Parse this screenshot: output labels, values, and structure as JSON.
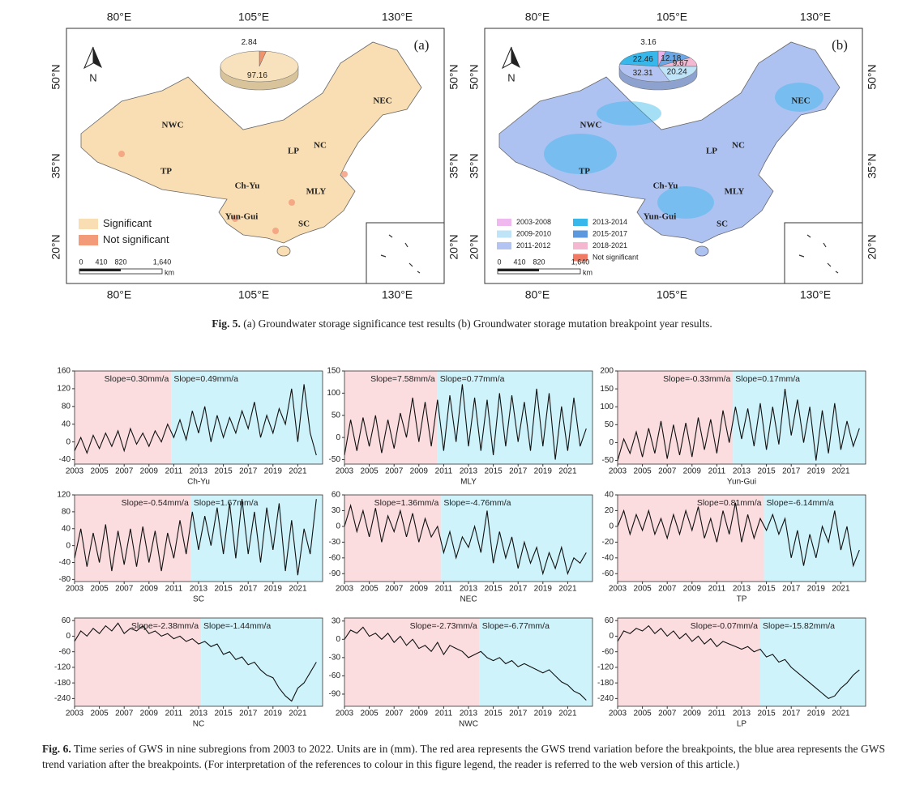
{
  "figure5": {
    "lon_labels": [
      "80°E",
      "105°E",
      "130°E"
    ],
    "lat_labels": [
      "50°N",
      "35°N",
      "20°N"
    ],
    "north": "N",
    "regions": [
      "NEC",
      "NWC",
      "LP",
      "NC",
      "TP",
      "Ch-Yu",
      "MLY",
      "Yun-Gui",
      "SC"
    ],
    "scale": [
      "0",
      "410",
      "820",
      "1,640"
    ],
    "scale_unit": "km",
    "panels": [
      {
        "label": "(a)",
        "map_color": "#f9deb3",
        "pie": {
          "values": [
            2.84,
            97.16
          ],
          "colors": [
            "#f0926a",
            "#f7e2bd"
          ]
        },
        "legend": [
          {
            "label": "Significant",
            "color": "#f9deb3"
          },
          {
            "label": "Not significant",
            "color": "#f39a78"
          }
        ]
      },
      {
        "label": "(b)",
        "map_color": "#aec2f2",
        "pie": {
          "values": [
            3.16,
            12.18,
            9.67,
            20.24,
            32.31,
            22.46
          ],
          "colors": [
            "#e9b2ec",
            "#6aa7e6",
            "#f4b9d2",
            "#bfe3f7",
            "#b4c4f2",
            "#37b7ea"
          ]
        },
        "legend": [
          {
            "label": "2003-2008",
            "color": "#efb9f0"
          },
          {
            "label": "2009-2010",
            "color": "#bfe3f7"
          },
          {
            "label": "2011-2012",
            "color": "#b4c4f2"
          },
          {
            "label": "2013-2014",
            "color": "#37b7ea"
          },
          {
            "label": "2015-2017",
            "color": "#5b98de"
          },
          {
            "label": "2018-2021",
            "color": "#f5b6cf"
          },
          {
            "label": "Not significant",
            "color": "#f07a64"
          }
        ]
      }
    ]
  },
  "figure5_caption": {
    "label": "Fig. 5.",
    "text": "(a) Groundwater storage significance test results (b) Groundwater storage mutation breakpoint year results."
  },
  "chart_data": [
    {
      "type": "line",
      "xlabel": "Ch-Yu",
      "annotations": [
        "Slope=0.30mm/a",
        "Slope=0.49mm/a"
      ],
      "breakpoint": 2010.8,
      "xlim": [
        2003,
        2023
      ],
      "xticks": [
        2003,
        2005,
        2007,
        2009,
        2011,
        2013,
        2015,
        2017,
        2019,
        2021
      ],
      "ylim": [
        -50,
        160
      ],
      "yticks": [
        -40,
        0,
        40,
        80,
        120,
        160
      ],
      "color": "#111111",
      "shade_colors": [
        "#fbdde0",
        "#cff3fb"
      ],
      "x": [
        2003,
        2003.5,
        2004,
        2004.5,
        2005,
        2005.5,
        2006,
        2006.5,
        2007,
        2007.5,
        2008,
        2008.5,
        2009,
        2009.5,
        2010,
        2010.5,
        2011,
        2011.5,
        2012,
        2012.5,
        2013,
        2013.5,
        2014,
        2014.5,
        2015,
        2015.5,
        2016,
        2016.5,
        2017,
        2017.5,
        2018,
        2018.5,
        2019,
        2019.5,
        2020,
        2020.5,
        2021,
        2021.5,
        2022,
        2022.5
      ],
      "values": [
        -20,
        10,
        -25,
        15,
        -15,
        20,
        -10,
        25,
        -20,
        30,
        -5,
        20,
        -10,
        25,
        0,
        40,
        10,
        50,
        5,
        70,
        20,
        80,
        0,
        60,
        10,
        55,
        20,
        70,
        30,
        90,
        10,
        60,
        20,
        75,
        40,
        120,
        0,
        130,
        20,
        -30
      ]
    },
    {
      "type": "line",
      "xlabel": "MLY",
      "annotations": [
        "Slope=7.58mm/a",
        "Slope=0.77mm/a"
      ],
      "breakpoint": 2010.5,
      "xlim": [
        2003,
        2023
      ],
      "xticks": [
        2003,
        2005,
        2007,
        2009,
        2011,
        2013,
        2015,
        2017,
        2019,
        2021
      ],
      "ylim": [
        -60,
        150
      ],
      "yticks": [
        -50,
        0,
        50,
        100,
        150
      ],
      "color": "#111111",
      "shade_colors": [
        "#fbdde0",
        "#cff3fb"
      ],
      "x": [
        2003,
        2003.5,
        2004,
        2004.5,
        2005,
        2005.5,
        2006,
        2006.5,
        2007,
        2007.5,
        2008,
        2008.5,
        2009,
        2009.5,
        2010,
        2010.5,
        2011,
        2011.5,
        2012,
        2012.5,
        2013,
        2013.5,
        2014,
        2014.5,
        2015,
        2015.5,
        2016,
        2016.5,
        2017,
        2017.5,
        2018,
        2018.5,
        2019,
        2019.5,
        2020,
        2020.5,
        2021,
        2021.5,
        2022,
        2022.5
      ],
      "values": [
        -40,
        40,
        -30,
        45,
        -20,
        50,
        -35,
        40,
        -25,
        55,
        0,
        90,
        -10,
        80,
        -20,
        85,
        -30,
        95,
        -10,
        120,
        -20,
        90,
        -30,
        85,
        -40,
        100,
        -20,
        95,
        -10,
        80,
        -30,
        110,
        -20,
        100,
        -50,
        70,
        -30,
        90,
        -20,
        20
      ]
    },
    {
      "type": "line",
      "xlabel": "Yun-Gui",
      "annotations": [
        "Slope=-0.33mm/a",
        "Slope=0.17mm/a"
      ],
      "breakpoint": 2012.3,
      "xlim": [
        2003,
        2023
      ],
      "xticks": [
        2003,
        2005,
        2007,
        2009,
        2011,
        2013,
        2015,
        2017,
        2019,
        2021
      ],
      "ylim": [
        -60,
        200
      ],
      "yticks": [
        -50,
        0,
        50,
        100,
        150,
        200
      ],
      "color": "#111111",
      "shade_colors": [
        "#fbdde0",
        "#cff3fb"
      ],
      "x": [
        2003,
        2003.5,
        2004,
        2004.5,
        2005,
        2005.5,
        2006,
        2006.5,
        2007,
        2007.5,
        2008,
        2008.5,
        2009,
        2009.5,
        2010,
        2010.5,
        2011,
        2011.5,
        2012,
        2012.5,
        2013,
        2013.5,
        2014,
        2014.5,
        2015,
        2015.5,
        2016,
        2016.5,
        2017,
        2017.5,
        2018,
        2018.5,
        2019,
        2019.5,
        2020,
        2020.5,
        2021,
        2021.5,
        2022,
        2022.5
      ],
      "values": [
        -50,
        10,
        -30,
        30,
        -40,
        40,
        -30,
        60,
        -45,
        50,
        -35,
        55,
        -40,
        70,
        -20,
        65,
        -30,
        90,
        0,
        100,
        10,
        95,
        -10,
        110,
        -20,
        100,
        -5,
        150,
        20,
        120,
        0,
        100,
        -50,
        90,
        -30,
        110,
        -20,
        60,
        -10,
        40
      ]
    },
    {
      "type": "line",
      "xlabel": "SC",
      "annotations": [
        "Slope=-0.54mm/a",
        "Slope=1.67mm/a"
      ],
      "breakpoint": 2012.4,
      "xlim": [
        2003,
        2023
      ],
      "xticks": [
        2003,
        2005,
        2007,
        2009,
        2011,
        2013,
        2015,
        2017,
        2019,
        2021
      ],
      "ylim": [
        -85,
        120
      ],
      "yticks": [
        -80,
        -40,
        0,
        40,
        80,
        120
      ],
      "color": "#111111",
      "shade_colors": [
        "#fbdde0",
        "#cff3fb"
      ],
      "x": [
        2003,
        2003.5,
        2004,
        2004.5,
        2005,
        2005.5,
        2006,
        2006.5,
        2007,
        2007.5,
        2008,
        2008.5,
        2009,
        2009.5,
        2010,
        2010.5,
        2011,
        2011.5,
        2012,
        2012.5,
        2013,
        2013.5,
        2014,
        2014.5,
        2015,
        2015.5,
        2016,
        2016.5,
        2017,
        2017.5,
        2018,
        2018.5,
        2019,
        2019.5,
        2020,
        2020.5,
        2021,
        2021.5,
        2022,
        2022.5
      ],
      "values": [
        -30,
        40,
        -50,
        30,
        -40,
        50,
        -60,
        35,
        -45,
        40,
        -50,
        45,
        -40,
        35,
        -60,
        30,
        -30,
        60,
        -20,
        80,
        -10,
        70,
        0,
        90,
        -20,
        100,
        -30,
        110,
        -20,
        80,
        -40,
        90,
        -10,
        100,
        -60,
        60,
        -70,
        40,
        -20,
        110
      ]
    },
    {
      "type": "line",
      "xlabel": "NEC",
      "annotations": [
        "Slope=1.36mm/a",
        "Slope=-4.76mm/a"
      ],
      "breakpoint": 2010.8,
      "xlim": [
        2003,
        2023
      ],
      "xticks": [
        2003,
        2005,
        2007,
        2009,
        2011,
        2013,
        2015,
        2017,
        2019,
        2021
      ],
      "ylim": [
        -105,
        60
      ],
      "yticks": [
        -90,
        -60,
        -30,
        0,
        30,
        60
      ],
      "color": "#111111",
      "shade_colors": [
        "#fbdde0",
        "#cff3fb"
      ],
      "x": [
        2003,
        2003.5,
        2004,
        2004.5,
        2005,
        2005.5,
        2006,
        2006.5,
        2007,
        2007.5,
        2008,
        2008.5,
        2009,
        2009.5,
        2010,
        2010.5,
        2011,
        2011.5,
        2012,
        2012.5,
        2013,
        2013.5,
        2014,
        2014.5,
        2015,
        2015.5,
        2016,
        2016.5,
        2017,
        2017.5,
        2018,
        2018.5,
        2019,
        2019.5,
        2020,
        2020.5,
        2021,
        2021.5,
        2022,
        2022.5
      ],
      "values": [
        0,
        40,
        -10,
        30,
        -20,
        35,
        -30,
        20,
        -10,
        30,
        -20,
        25,
        -30,
        15,
        -20,
        0,
        -50,
        -10,
        -60,
        -20,
        -40,
        0,
        -50,
        30,
        -70,
        -10,
        -60,
        -20,
        -80,
        -30,
        -70,
        -40,
        -90,
        -50,
        -80,
        -40,
        -90,
        -60,
        -70,
        -50
      ]
    },
    {
      "type": "line",
      "xlabel": "TP",
      "annotations": [
        "Slope=0.81mm/a",
        "Slope=-6.14mm/a"
      ],
      "breakpoint": 2014.8,
      "xlim": [
        2003,
        2023
      ],
      "xticks": [
        2003,
        2005,
        2007,
        2009,
        2011,
        2013,
        2015,
        2017,
        2019,
        2021
      ],
      "ylim": [
        -70,
        40
      ],
      "yticks": [
        -60,
        -40,
        -20,
        0,
        20,
        40
      ],
      "color": "#111111",
      "shade_colors": [
        "#fbdde0",
        "#cff3fb"
      ],
      "x": [
        2003,
        2003.5,
        2004,
        2004.5,
        2005,
        2005.5,
        2006,
        2006.5,
        2007,
        2007.5,
        2008,
        2008.5,
        2009,
        2009.5,
        2010,
        2010.5,
        2011,
        2011.5,
        2012,
        2012.5,
        2013,
        2013.5,
        2014,
        2014.5,
        2015,
        2015.5,
        2016,
        2016.5,
        2017,
        2017.5,
        2018,
        2018.5,
        2019,
        2019.5,
        2020,
        2020.5,
        2021,
        2021.5,
        2022,
        2022.5
      ],
      "values": [
        0,
        20,
        -10,
        15,
        -5,
        20,
        -10,
        10,
        -15,
        15,
        -10,
        20,
        -5,
        25,
        -15,
        10,
        -20,
        20,
        -10,
        30,
        -20,
        15,
        -15,
        10,
        -5,
        15,
        -10,
        10,
        -40,
        -5,
        -50,
        -10,
        -40,
        0,
        -20,
        20,
        -30,
        0,
        -50,
        -30
      ]
    },
    {
      "type": "line",
      "xlabel": "NC",
      "annotations": [
        "Slope=-2.38mm/a",
        "Slope=-1.44mm/a"
      ],
      "breakpoint": 2013.2,
      "xlim": [
        2003,
        2023
      ],
      "xticks": [
        2003,
        2005,
        2007,
        2009,
        2011,
        2013,
        2015,
        2017,
        2019,
        2021
      ],
      "ylim": [
        -270,
        70
      ],
      "yticks": [
        -240,
        -180,
        -120,
        -60,
        0,
        60
      ],
      "color": "#111111",
      "shade_colors": [
        "#fbdde0",
        "#cff3fb"
      ],
      "x": [
        2003,
        2003.5,
        2004,
        2004.5,
        2005,
        2005.5,
        2006,
        2006.5,
        2007,
        2007.5,
        2008,
        2008.5,
        2009,
        2009.5,
        2010,
        2010.5,
        2011,
        2011.5,
        2012,
        2012.5,
        2013,
        2013.5,
        2014,
        2014.5,
        2015,
        2015.5,
        2016,
        2016.5,
        2017,
        2017.5,
        2018,
        2018.5,
        2019,
        2019.5,
        2020,
        2020.5,
        2021,
        2021.5,
        2022,
        2022.5
      ],
      "values": [
        -20,
        20,
        0,
        30,
        10,
        40,
        20,
        50,
        10,
        30,
        20,
        40,
        10,
        20,
        0,
        10,
        -10,
        0,
        -20,
        -10,
        -30,
        -20,
        -40,
        -30,
        -70,
        -60,
        -90,
        -80,
        -110,
        -100,
        -130,
        -150,
        -160,
        -200,
        -230,
        -250,
        -200,
        -180,
        -140,
        -100
      ]
    },
    {
      "type": "line",
      "xlabel": "NWC",
      "annotations": [
        "Slope=-2.73mm/a",
        "Slope=-6.77mm/a"
      ],
      "breakpoint": 2013.9,
      "xlim": [
        2003,
        2023
      ],
      "xticks": [
        2003,
        2005,
        2007,
        2009,
        2011,
        2013,
        2015,
        2017,
        2019,
        2021
      ],
      "ylim": [
        -110,
        35
      ],
      "yticks": [
        -90,
        -60,
        -30,
        0,
        30
      ],
      "color": "#111111",
      "shade_colors": [
        "#fbdde0",
        "#cff3fb"
      ],
      "x": [
        2003,
        2003.5,
        2004,
        2004.5,
        2005,
        2005.5,
        2006,
        2006.5,
        2007,
        2007.5,
        2008,
        2008.5,
        2009,
        2009.5,
        2010,
        2010.5,
        2011,
        2011.5,
        2012,
        2012.5,
        2013,
        2013.5,
        2014,
        2014.5,
        2015,
        2015.5,
        2016,
        2016.5,
        2017,
        2017.5,
        2018,
        2018.5,
        2019,
        2019.5,
        2020,
        2020.5,
        2021,
        2021.5,
        2022,
        2022.5
      ],
      "values": [
        0,
        15,
        10,
        20,
        5,
        10,
        0,
        10,
        -5,
        5,
        -10,
        0,
        -15,
        -10,
        -20,
        -5,
        -25,
        -10,
        -15,
        -20,
        -30,
        -25,
        -20,
        -30,
        -35,
        -30,
        -40,
        -35,
        -45,
        -40,
        -45,
        -50,
        -55,
        -50,
        -60,
        -70,
        -75,
        -85,
        -90,
        -100
      ]
    },
    {
      "type": "line",
      "xlabel": "LP",
      "annotations": [
        "Slope=-0.07mm/a",
        "Slope=-15.82mm/a"
      ],
      "breakpoint": 2014.5,
      "xlim": [
        2003,
        2023
      ],
      "xticks": [
        2003,
        2005,
        2007,
        2009,
        2011,
        2013,
        2015,
        2017,
        2019,
        2021
      ],
      "ylim": [
        -270,
        70
      ],
      "yticks": [
        -240,
        -180,
        -120,
        -60,
        0,
        60
      ],
      "color": "#111111",
      "shade_colors": [
        "#fbdde0",
        "#cff3fb"
      ],
      "x": [
        2003,
        2003.5,
        2004,
        2004.5,
        2005,
        2005.5,
        2006,
        2006.5,
        2007,
        2007.5,
        2008,
        2008.5,
        2009,
        2009.5,
        2010,
        2010.5,
        2011,
        2011.5,
        2012,
        2012.5,
        2013,
        2013.5,
        2014,
        2014.5,
        2015,
        2015.5,
        2016,
        2016.5,
        2017,
        2017.5,
        2018,
        2018.5,
        2019,
        2019.5,
        2020,
        2020.5,
        2021,
        2021.5,
        2022,
        2022.5
      ],
      "values": [
        -20,
        20,
        10,
        30,
        20,
        40,
        10,
        30,
        0,
        20,
        -10,
        10,
        -20,
        0,
        -30,
        -10,
        -40,
        -20,
        -30,
        -40,
        -50,
        -40,
        -60,
        -50,
        -80,
        -70,
        -100,
        -90,
        -120,
        -140,
        -160,
        -180,
        -200,
        -220,
        -240,
        -230,
        -200,
        -180,
        -150,
        -130
      ]
    }
  ],
  "figure6_caption": {
    "label": "Fig. 6.",
    "text": "Time series of GWS in nine subregions from 2003 to 2022. Units are in (mm). The red area represents the GWS trend variation before the breakpoints, the blue area represents the GWS trend variation after the breakpoints. (For interpretation of the references to colour in this figure legend, the reader is referred to the web version of this article.)"
  }
}
